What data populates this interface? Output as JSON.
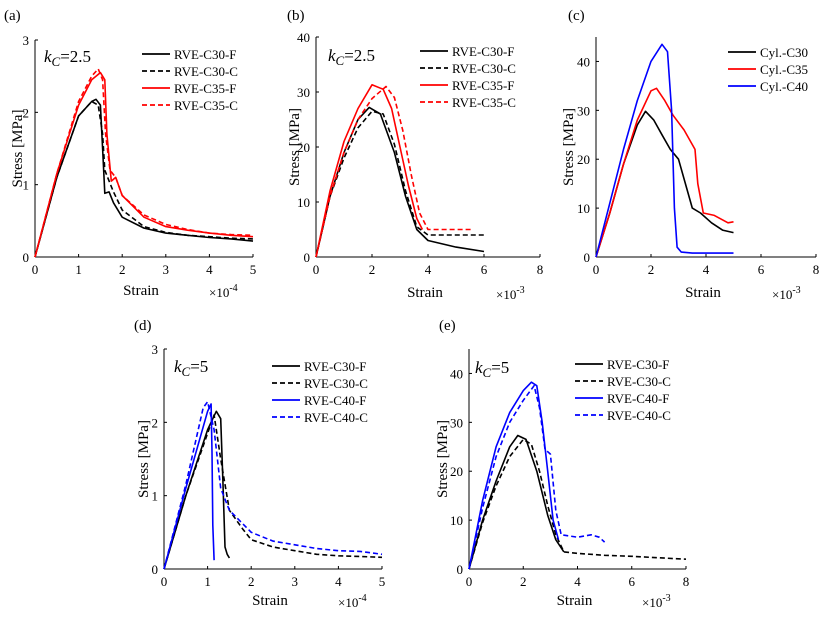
{
  "chart_data": [
    {
      "type": "line",
      "panel_label": "(a)",
      "annotation": {
        "symbol": "k",
        "subscript": "C",
        "value": "=2.5"
      },
      "xlabel": "Strain",
      "ylabel": "Stress [MPa]",
      "xmultiplier": "10",
      "xmultiplier_exponent": "-4",
      "xlim": [
        0,
        5
      ],
      "ylim": [
        0,
        3
      ],
      "xticks": [
        "0",
        "1",
        "2",
        "3",
        "4",
        "5"
      ],
      "yticks": [
        "0",
        "1",
        "2",
        "3"
      ],
      "legend_position": "top-right",
      "series": [
        {
          "name": "RVE-C30-F",
          "color": "#000000",
          "style": "solid",
          "x": [
            0,
            0.5,
            1.0,
            1.3,
            1.4,
            1.5,
            1.55,
            1.6,
            1.7,
            1.8,
            2.0,
            2.5,
            3.0,
            3.5,
            4.0,
            4.5,
            5.0
          ],
          "y": [
            0,
            1.1,
            1.95,
            2.15,
            2.18,
            2.1,
            1.5,
            0.88,
            0.9,
            0.75,
            0.55,
            0.4,
            0.33,
            0.3,
            0.27,
            0.25,
            0.22
          ]
        },
        {
          "name": "RVE-C30-C",
          "color": "#000000",
          "style": "dashed",
          "x": [
            0,
            0.5,
            1.0,
            1.3,
            1.45,
            1.55,
            1.6,
            1.7,
            1.8,
            2.0,
            2.5,
            3.0,
            3.5,
            4.0,
            4.5,
            5.0
          ],
          "y": [
            0,
            1.1,
            1.95,
            2.15,
            2.1,
            1.7,
            1.2,
            1.05,
            0.9,
            0.65,
            0.42,
            0.34,
            0.3,
            0.28,
            0.26,
            0.25
          ]
        },
        {
          "name": "RVE-C35-F",
          "color": "#ff0000",
          "style": "solid",
          "x": [
            0,
            0.5,
            1.0,
            1.3,
            1.5,
            1.6,
            1.65,
            1.75,
            1.85,
            2.0,
            2.5,
            3.0,
            3.5,
            4.0,
            4.5,
            5.0
          ],
          "y": [
            0,
            1.15,
            2.1,
            2.45,
            2.55,
            2.45,
            1.7,
            1.05,
            1.1,
            0.85,
            0.55,
            0.42,
            0.37,
            0.33,
            0.3,
            0.28
          ]
        },
        {
          "name": "RVE-C35-C",
          "color": "#ff0000",
          "style": "dashed",
          "x": [
            0,
            0.5,
            1.0,
            1.3,
            1.45,
            1.55,
            1.62,
            1.72,
            1.85,
            2.0,
            2.5,
            3.0,
            3.5,
            4.0,
            4.5,
            5.0
          ],
          "y": [
            0,
            1.15,
            2.15,
            2.5,
            2.6,
            2.45,
            1.7,
            1.2,
            1.1,
            0.85,
            0.58,
            0.45,
            0.38,
            0.33,
            0.31,
            0.3
          ]
        }
      ]
    },
    {
      "type": "line",
      "panel_label": "(b)",
      "annotation": {
        "symbol": "k",
        "subscript": "C",
        "value": "=2.5"
      },
      "xlabel": "Strain",
      "ylabel": "Stress [MPa]",
      "xmultiplier": "10",
      "xmultiplier_exponent": "-3",
      "xlim": [
        0,
        8
      ],
      "ylim": [
        0,
        40
      ],
      "xticks": [
        "0",
        "2",
        "4",
        "6",
        "8"
      ],
      "yticks": [
        "0",
        "10",
        "20",
        "30",
        "40"
      ],
      "legend_position": "top-right",
      "series": [
        {
          "name": "RVE-C30-F",
          "color": "#000000",
          "style": "solid",
          "x": [
            0,
            0.5,
            1.0,
            1.5,
            1.9,
            2.3,
            2.8,
            3.2,
            3.6,
            4.0,
            5.0,
            6.0
          ],
          "y": [
            0,
            11,
            19,
            25,
            27.2,
            26,
            19,
            11,
            5,
            3,
            1.8,
            1.0
          ]
        },
        {
          "name": "RVE-C30-C",
          "color": "#000000",
          "style": "dashed",
          "x": [
            0,
            0.5,
            1.0,
            1.5,
            2.0,
            2.4,
            2.8,
            3.2,
            3.6,
            4.0,
            5.0,
            6.0
          ],
          "y": [
            0,
            11,
            18,
            23.5,
            26.5,
            26,
            20.5,
            12,
            5.5,
            4.0,
            4.0,
            4.0
          ]
        },
        {
          "name": "RVE-C35-F",
          "color": "#ff0000",
          "style": "solid",
          "x": [
            0,
            0.5,
            1.0,
            1.5,
            2.0,
            2.4,
            2.7,
            3.0,
            3.3,
            3.6,
            3.8
          ],
          "y": [
            0,
            12,
            21,
            27,
            31.3,
            30.5,
            27,
            20,
            13,
            7,
            5.0
          ]
        },
        {
          "name": "RVE-C35-C",
          "color": "#ff0000",
          "style": "dashed",
          "x": [
            0,
            0.5,
            1.0,
            1.5,
            2.0,
            2.5,
            2.8,
            3.1,
            3.4,
            3.7,
            4.0,
            5.0,
            5.6
          ],
          "y": [
            0,
            11,
            19,
            25,
            28.8,
            31,
            29,
            23,
            15,
            8,
            5.0,
            5.0,
            5.0
          ]
        }
      ]
    },
    {
      "type": "line",
      "panel_label": "(c)",
      "annotation": null,
      "xlabel": "Strain",
      "ylabel": "Stress [MPa]",
      "xmultiplier": "10",
      "xmultiplier_exponent": "-3",
      "xlim": [
        0,
        8
      ],
      "ylim": [
        0,
        45
      ],
      "xticks": [
        "0",
        "2",
        "4",
        "6",
        "8"
      ],
      "yticks": [
        "0",
        "10",
        "20",
        "30",
        "40"
      ],
      "legend_position": "top-right",
      "series": [
        {
          "name": "Cyl.-C30",
          "color": "#000000",
          "style": "solid",
          "x": [
            0,
            0.5,
            1.0,
            1.5,
            1.8,
            2.1,
            2.4,
            2.7,
            3.0,
            3.3,
            3.5,
            3.8,
            4.2,
            4.6,
            5.0
          ],
          "y": [
            0,
            9,
            19,
            27,
            29.8,
            28,
            25,
            22,
            20,
            14,
            10,
            9,
            7,
            5.5,
            5.0
          ]
        },
        {
          "name": "Cyl.-C35",
          "color": "#ff0000",
          "style": "solid",
          "x": [
            0,
            0.5,
            1.0,
            1.5,
            2.0,
            2.2,
            2.5,
            2.8,
            3.2,
            3.6,
            3.7,
            3.9,
            4.3,
            4.8,
            5.0
          ],
          "y": [
            0,
            9,
            19,
            28,
            34,
            34.5,
            32,
            29,
            26,
            22,
            15,
            9,
            8.5,
            7,
            7.2
          ]
        },
        {
          "name": "Cyl.-C40",
          "color": "#0000ff",
          "style": "solid",
          "x": [
            0,
            0.5,
            1.0,
            1.5,
            2.0,
            2.4,
            2.6,
            2.75,
            2.85,
            2.95,
            3.1,
            3.5,
            4.0,
            5.0
          ],
          "y": [
            0,
            11,
            22,
            32,
            40,
            43.5,
            42,
            30,
            10,
            2,
            1,
            0.8,
            0.8,
            0.8
          ]
        }
      ]
    },
    {
      "type": "line",
      "panel_label": "(d)",
      "annotation": {
        "symbol": "k",
        "subscript": "C",
        "value": "=5"
      },
      "xlabel": "Strain",
      "ylabel": "Stress [MPa]",
      "xmultiplier": "10",
      "xmultiplier_exponent": "-4",
      "xlim": [
        0,
        5
      ],
      "ylim": [
        0,
        3
      ],
      "xticks": [
        "0",
        "1",
        "2",
        "3",
        "4",
        "5"
      ],
      "yticks": [
        "0",
        "1",
        "2",
        "3"
      ],
      "legend_position": "top-right",
      "series": [
        {
          "name": "RVE-C30-F",
          "color": "#000000",
          "style": "solid",
          "x": [
            0,
            0.5,
            1.0,
            1.2,
            1.3,
            1.35,
            1.4,
            1.45,
            1.5
          ],
          "y": [
            0,
            1.0,
            1.9,
            2.15,
            2.05,
            1.2,
            0.3,
            0.2,
            0.15
          ]
        },
        {
          "name": "RVE-C30-C",
          "color": "#000000",
          "style": "dashed",
          "x": [
            0,
            0.5,
            1.0,
            1.15,
            1.3,
            1.5,
            1.8,
            2.0,
            2.5,
            3.0,
            3.5,
            4.0,
            4.5,
            5.0
          ],
          "y": [
            0,
            1.0,
            1.85,
            2.1,
            1.5,
            0.8,
            0.55,
            0.4,
            0.3,
            0.25,
            0.2,
            0.18,
            0.17,
            0.16
          ]
        },
        {
          "name": "RVE-C40-F",
          "color": "#0000ff",
          "style": "solid",
          "x": [
            0,
            0.5,
            1.0,
            1.08,
            1.1,
            1.12,
            1.15
          ],
          "y": [
            0,
            1.1,
            2.15,
            2.25,
            1.6,
            0.6,
            0.12
          ]
        },
        {
          "name": "RVE-C40-C",
          "color": "#0000ff",
          "style": "dashed",
          "x": [
            0,
            0.5,
            0.9,
            1.0,
            1.15,
            1.3,
            1.5,
            2.0,
            2.5,
            3.0,
            3.5,
            4.0,
            4.5,
            5.0
          ],
          "y": [
            0,
            1.15,
            2.2,
            2.28,
            1.9,
            1.1,
            0.8,
            0.5,
            0.38,
            0.33,
            0.28,
            0.25,
            0.24,
            0.2
          ]
        }
      ]
    },
    {
      "type": "line",
      "panel_label": "(e)",
      "annotation": {
        "symbol": "k",
        "subscript": "C",
        "value": "=5"
      },
      "xlabel": "Strain",
      "ylabel": "Stress [MPa]",
      "xmultiplier": "10",
      "xmultiplier_exponent": "-3",
      "xlim": [
        0,
        8
      ],
      "ylim": [
        0,
        45
      ],
      "xticks": [
        "0",
        "2",
        "4",
        "6",
        "8"
      ],
      "yticks": [
        "0",
        "10",
        "20",
        "30",
        "40"
      ],
      "legend_position": "top-right",
      "series": [
        {
          "name": "RVE-C30-F",
          "color": "#000000",
          "style": "solid",
          "x": [
            0,
            0.5,
            1.0,
            1.5,
            1.8,
            2.1,
            2.5,
            2.9,
            3.2,
            3.5
          ],
          "y": [
            0,
            10,
            18,
            25,
            27.3,
            26.5,
            20,
            11,
            6,
            3.5
          ]
        },
        {
          "name": "RVE-C30-C",
          "color": "#000000",
          "style": "dashed",
          "x": [
            0,
            0.5,
            1.0,
            1.5,
            2.0,
            2.3,
            2.6,
            2.9,
            3.2,
            3.5,
            4.0,
            5.0,
            6.0,
            7.0,
            8.0
          ],
          "y": [
            0,
            9.5,
            17,
            23,
            26.5,
            25.5,
            20,
            13,
            7,
            3.5,
            3.2,
            2.8,
            2.6,
            2.3,
            2.0
          ]
        },
        {
          "name": "RVE-C40-F",
          "color": "#0000ff",
          "style": "solid",
          "x": [
            0,
            0.5,
            1.0,
            1.5,
            2.0,
            2.3,
            2.5,
            2.7,
            2.9,
            3.1,
            3.3
          ],
          "y": [
            0,
            14,
            25,
            32,
            36.5,
            38.2,
            37.5,
            30,
            20,
            10,
            6.0
          ]
        },
        {
          "name": "RVE-C40-C",
          "color": "#0000ff",
          "style": "dashed",
          "x": [
            0,
            0.5,
            1.0,
            1.5,
            2.0,
            2.4,
            2.6,
            2.8,
            3.0,
            3.2,
            3.4,
            4.0,
            4.5,
            4.8,
            5.0
          ],
          "y": [
            0,
            12.5,
            23,
            30,
            34.5,
            37.5,
            33,
            24.5,
            23.5,
            12,
            7,
            6.5,
            7.0,
            6.5,
            5.5
          ]
        }
      ]
    }
  ]
}
